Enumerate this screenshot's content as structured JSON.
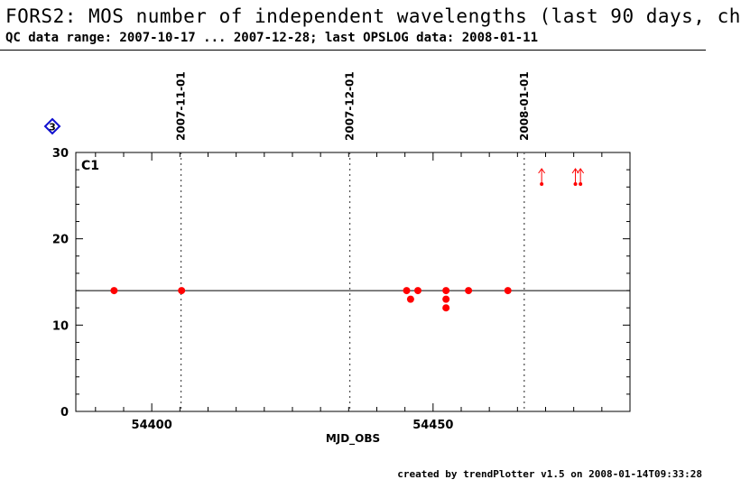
{
  "header": {
    "title": "FORS2: MOS number of independent wavelengths (last 90 days, ch",
    "subtitle": "QC data range: 2007-10-17 ... 2007-12-28; last OPSLOG data: 2008-01-11"
  },
  "footer": {
    "credit": "created by trendPlotter v1.5 on 2008-01-14T09:33:28"
  },
  "panel": {
    "badge_number": "3",
    "badge_color": "#1010d0",
    "label": "C1"
  },
  "chart_data": {
    "type": "scatter",
    "xlabel": "MJD_OBS",
    "xlim": [
      54386.5,
      54485
    ],
    "ylim": [
      0,
      30
    ],
    "xticks": [
      54400,
      54450
    ],
    "yticks": [
      0,
      10,
      20,
      30
    ],
    "reference_line": 14,
    "date_markers": [
      {
        "label": "2007-11-01",
        "x": 54405.2
      },
      {
        "label": "2007-12-01",
        "x": 54435.2
      },
      {
        "label": "2008-01-01",
        "x": 54466.2
      }
    ],
    "point_color": "#ff0000",
    "points": [
      {
        "x": 54393.3,
        "y": 14
      },
      {
        "x": 54405.3,
        "y": 14
      },
      {
        "x": 54445.3,
        "y": 14
      },
      {
        "x": 54446.0,
        "y": 13
      },
      {
        "x": 54447.3,
        "y": 14
      },
      {
        "x": 54452.3,
        "y": 14
      },
      {
        "x": 54452.3,
        "y": 13
      },
      {
        "x": 54452.3,
        "y": 12
      },
      {
        "x": 54456.3,
        "y": 14
      },
      {
        "x": 54463.3,
        "y": 14
      }
    ],
    "out_of_range_points": [
      {
        "x": 54469.3
      },
      {
        "x": 54475.3
      },
      {
        "x": 54476.2
      }
    ]
  }
}
